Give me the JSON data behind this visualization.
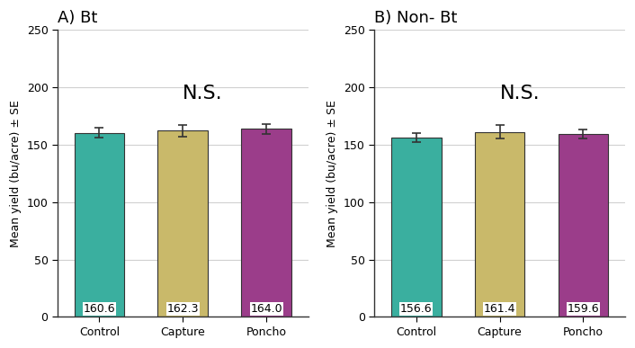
{
  "panels": [
    {
      "title": "A) Bt",
      "categories": [
        "Control",
        "Capture",
        "Poncho"
      ],
      "values": [
        160.6,
        162.3,
        164.0
      ],
      "errors": [
        4.5,
        5.0,
        4.2
      ],
      "label_text": "N.S.",
      "ylabel": "Mean yield (bu/acre) ± SE",
      "ylim": [
        0,
        250
      ],
      "yticks": [
        0,
        50,
        100,
        150,
        200,
        250
      ]
    },
    {
      "title": "B) Non- Bt",
      "categories": [
        "Control",
        "Capture",
        "Poncho"
      ],
      "values": [
        156.6,
        161.4,
        159.6
      ],
      "errors": [
        4.0,
        5.5,
        3.8
      ],
      "label_text": "N.S.",
      "ylabel": "Mean yield (bu/acre) ± SE",
      "ylim": [
        0,
        250
      ],
      "yticks": [
        0,
        50,
        100,
        150,
        200,
        250
      ]
    }
  ],
  "bar_colors": [
    "#3aaf9f",
    "#c9b96a",
    "#9b3d8a"
  ],
  "bar_edge_color": "#333333",
  "error_color": "#333333",
  "background_color": "#ffffff",
  "plot_bg_color": "#ffffff",
  "grid_color": "#d0d0d0",
  "value_label_fontsize": 9,
  "title_fontsize": 13,
  "ns_fontsize": 16,
  "axis_label_fontsize": 9,
  "tick_fontsize": 9,
  "bar_width": 0.6
}
